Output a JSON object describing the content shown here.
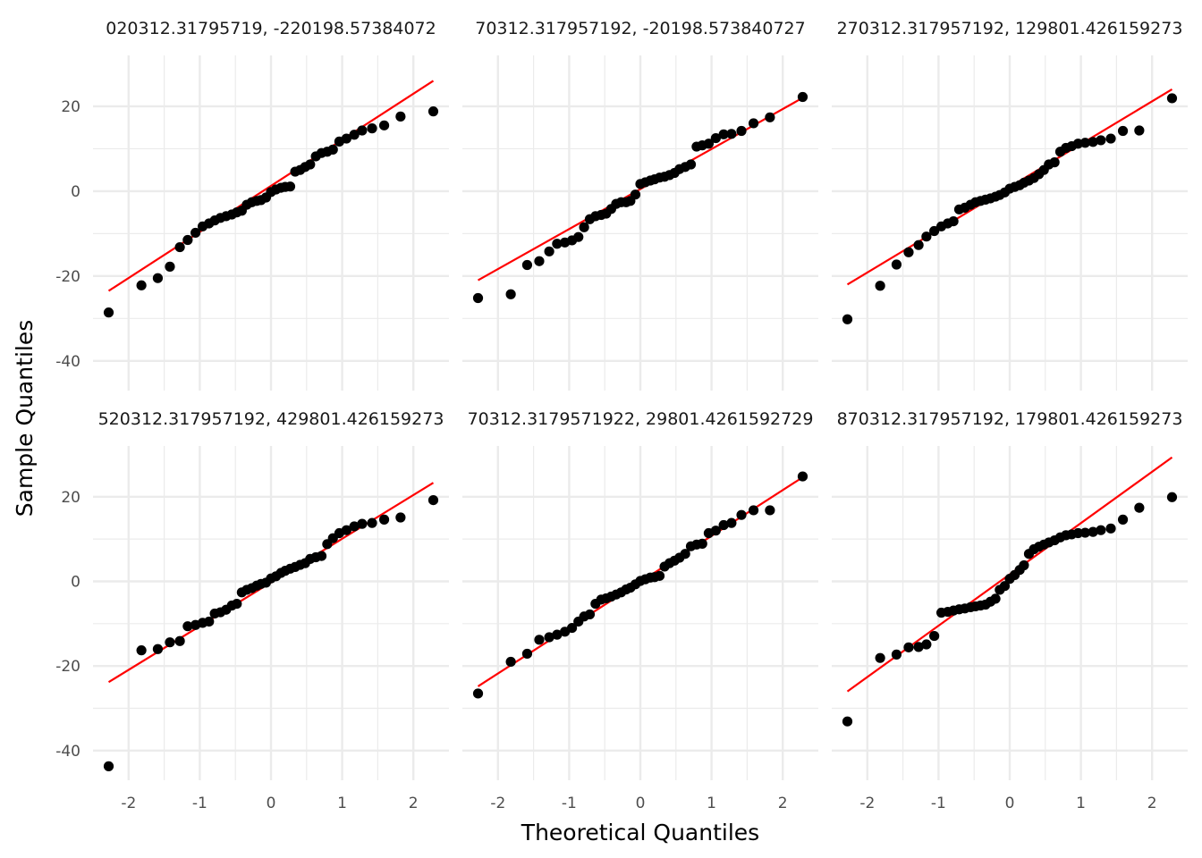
{
  "chart_data": {
    "type": "scatter",
    "xlabel": "Theoretical Quantiles",
    "ylabel": "Sample Quantiles",
    "xlim": [
      -2.5,
      2.5
    ],
    "ylim": [
      -47,
      32
    ],
    "x_ticks": [
      -2,
      -1,
      0,
      1,
      2
    ],
    "y_ticks": [
      -40,
      -20,
      0,
      20
    ],
    "grid": true,
    "colors": {
      "points": "#000000",
      "reference_line": "#ff0000",
      "grid": "#ebebeb"
    },
    "panels": [
      {
        "title": "020312.31795719, -220198.57384072",
        "line": {
          "x": [
            -2.28,
            2.28
          ],
          "y": [
            -23.5,
            26.0
          ]
        },
        "points": [
          [
            -2.28,
            -28.6
          ],
          [
            -1.82,
            -22.2
          ],
          [
            -1.59,
            -20.5
          ],
          [
            -1.42,
            -17.8
          ],
          [
            -1.28,
            -13.2
          ],
          [
            -1.17,
            -11.5
          ],
          [
            -1.06,
            -9.8
          ],
          [
            -0.96,
            -8.3
          ],
          [
            -0.87,
            -7.6
          ],
          [
            -0.79,
            -6.9
          ],
          [
            -0.71,
            -6.3
          ],
          [
            -0.63,
            -5.9
          ],
          [
            -0.55,
            -5.5
          ],
          [
            -0.48,
            -5.0
          ],
          [
            -0.41,
            -4.6
          ],
          [
            -0.34,
            -3.2
          ],
          [
            -0.27,
            -2.6
          ],
          [
            -0.2,
            -2.3
          ],
          [
            -0.14,
            -2.1
          ],
          [
            -0.07,
            -1.5
          ],
          [
            0.0,
            -0.2
          ],
          [
            0.07,
            0.4
          ],
          [
            0.14,
            0.8
          ],
          [
            0.2,
            1.0
          ],
          [
            0.27,
            1.1
          ],
          [
            0.34,
            4.6
          ],
          [
            0.41,
            5.0
          ],
          [
            0.48,
            5.7
          ],
          [
            0.55,
            6.3
          ],
          [
            0.63,
            8.2
          ],
          [
            0.71,
            9.0
          ],
          [
            0.79,
            9.3
          ],
          [
            0.87,
            9.8
          ],
          [
            0.96,
            11.7
          ],
          [
            1.06,
            12.4
          ],
          [
            1.17,
            13.3
          ],
          [
            1.28,
            14.3
          ],
          [
            1.42,
            14.8
          ],
          [
            1.59,
            15.5
          ],
          [
            1.82,
            17.6
          ],
          [
            2.28,
            18.8
          ]
        ]
      },
      {
        "title": "70312.317957192, -20198.573840727",
        "line": {
          "x": [
            -2.28,
            2.28
          ],
          "y": [
            -21.0,
            22.0
          ]
        },
        "points": [
          [
            -2.28,
            -25.2
          ],
          [
            -1.82,
            -24.3
          ],
          [
            -1.59,
            -17.4
          ],
          [
            -1.42,
            -16.5
          ],
          [
            -1.28,
            -14.2
          ],
          [
            -1.17,
            -12.4
          ],
          [
            -1.06,
            -12.1
          ],
          [
            -0.96,
            -11.6
          ],
          [
            -0.87,
            -10.8
          ],
          [
            -0.79,
            -8.5
          ],
          [
            -0.71,
            -6.6
          ],
          [
            -0.63,
            -5.9
          ],
          [
            -0.55,
            -5.6
          ],
          [
            -0.48,
            -5.3
          ],
          [
            -0.41,
            -4.2
          ],
          [
            -0.34,
            -3.0
          ],
          [
            -0.27,
            -2.6
          ],
          [
            -0.2,
            -2.6
          ],
          [
            -0.14,
            -2.3
          ],
          [
            -0.07,
            -0.8
          ],
          [
            0.0,
            1.7
          ],
          [
            0.07,
            2.1
          ],
          [
            0.14,
            2.5
          ],
          [
            0.2,
            2.8
          ],
          [
            0.27,
            3.2
          ],
          [
            0.34,
            3.4
          ],
          [
            0.41,
            3.8
          ],
          [
            0.48,
            4.3
          ],
          [
            0.55,
            5.2
          ],
          [
            0.63,
            5.7
          ],
          [
            0.71,
            6.3
          ],
          [
            0.79,
            10.5
          ],
          [
            0.87,
            10.8
          ],
          [
            0.96,
            11.2
          ],
          [
            1.06,
            12.5
          ],
          [
            1.17,
            13.4
          ],
          [
            1.28,
            13.5
          ],
          [
            1.42,
            14.2
          ],
          [
            1.59,
            16.0
          ],
          [
            1.82,
            17.4
          ],
          [
            2.28,
            22.2
          ]
        ]
      },
      {
        "title": "270312.317957192, 129801.426159273",
        "line": {
          "x": [
            -2.28,
            2.28
          ],
          "y": [
            -22.0,
            24.0
          ]
        },
        "points": [
          [
            -2.28,
            -30.2
          ],
          [
            -1.82,
            -22.3
          ],
          [
            -1.59,
            -17.3
          ],
          [
            -1.42,
            -14.4
          ],
          [
            -1.28,
            -12.7
          ],
          [
            -1.17,
            -10.7
          ],
          [
            -1.06,
            -9.4
          ],
          [
            -0.96,
            -8.3
          ],
          [
            -0.87,
            -7.6
          ],
          [
            -0.79,
            -7.1
          ],
          [
            -0.71,
            -4.3
          ],
          [
            -0.63,
            -3.9
          ],
          [
            -0.55,
            -3.2
          ],
          [
            -0.48,
            -2.6
          ],
          [
            -0.41,
            -2.3
          ],
          [
            -0.34,
            -2.0
          ],
          [
            -0.27,
            -1.7
          ],
          [
            -0.2,
            -1.3
          ],
          [
            -0.14,
            -0.9
          ],
          [
            -0.07,
            -0.3
          ],
          [
            0.0,
            0.6
          ],
          [
            0.07,
            1.0
          ],
          [
            0.14,
            1.4
          ],
          [
            0.2,
            2.0
          ],
          [
            0.27,
            2.5
          ],
          [
            0.34,
            3.1
          ],
          [
            0.41,
            4.0
          ],
          [
            0.48,
            5.0
          ],
          [
            0.55,
            6.3
          ],
          [
            0.63,
            6.8
          ],
          [
            0.71,
            9.3
          ],
          [
            0.79,
            10.2
          ],
          [
            0.87,
            10.6
          ],
          [
            0.96,
            11.2
          ],
          [
            1.06,
            11.4
          ],
          [
            1.17,
            11.6
          ],
          [
            1.28,
            12.0
          ],
          [
            1.42,
            12.4
          ],
          [
            1.59,
            14.2
          ],
          [
            1.82,
            14.3
          ],
          [
            2.28,
            21.9
          ]
        ]
      },
      {
        "title": "520312.317957192, 429801.426159273",
        "line": {
          "x": [
            -2.28,
            2.28
          ],
          "y": [
            -23.8,
            23.3
          ]
        },
        "points": [
          [
            -2.28,
            -43.7
          ],
          [
            -1.82,
            -16.3
          ],
          [
            -1.59,
            -16.0
          ],
          [
            -1.42,
            -14.4
          ],
          [
            -1.28,
            -14.1
          ],
          [
            -1.17,
            -10.6
          ],
          [
            -1.06,
            -10.3
          ],
          [
            -0.96,
            -9.8
          ],
          [
            -0.87,
            -9.5
          ],
          [
            -0.79,
            -7.6
          ],
          [
            -0.71,
            -7.3
          ],
          [
            -0.63,
            -6.7
          ],
          [
            -0.55,
            -5.7
          ],
          [
            -0.48,
            -5.3
          ],
          [
            -0.41,
            -2.6
          ],
          [
            -0.34,
            -2.0
          ],
          [
            -0.27,
            -1.6
          ],
          [
            -0.2,
            -1.0
          ],
          [
            -0.14,
            -0.6
          ],
          [
            -0.07,
            -0.3
          ],
          [
            0.0,
            0.7
          ],
          [
            0.07,
            1.2
          ],
          [
            0.14,
            2.0
          ],
          [
            0.2,
            2.5
          ],
          [
            0.27,
            3.0
          ],
          [
            0.34,
            3.4
          ],
          [
            0.41,
            3.9
          ],
          [
            0.48,
            4.3
          ],
          [
            0.55,
            5.3
          ],
          [
            0.63,
            5.7
          ],
          [
            0.71,
            6.0
          ],
          [
            0.79,
            8.8
          ],
          [
            0.87,
            10.2
          ],
          [
            0.96,
            11.4
          ],
          [
            1.06,
            12.1
          ],
          [
            1.17,
            13.0
          ],
          [
            1.28,
            13.6
          ],
          [
            1.42,
            13.8
          ],
          [
            1.59,
            14.6
          ],
          [
            1.82,
            15.1
          ],
          [
            2.28,
            19.2
          ]
        ]
      },
      {
        "title": "70312.3179571922, 29801.4261592729",
        "line": {
          "x": [
            -2.28,
            2.28
          ],
          "y": [
            -24.8,
            24.6
          ]
        },
        "points": [
          [
            -2.28,
            -26.5
          ],
          [
            -1.82,
            -19.0
          ],
          [
            -1.59,
            -17.1
          ],
          [
            -1.42,
            -13.8
          ],
          [
            -1.28,
            -13.2
          ],
          [
            -1.17,
            -12.6
          ],
          [
            -1.06,
            -11.9
          ],
          [
            -0.96,
            -11.0
          ],
          [
            -0.87,
            -9.5
          ],
          [
            -0.79,
            -8.3
          ],
          [
            -0.71,
            -7.8
          ],
          [
            -0.63,
            -5.3
          ],
          [
            -0.55,
            -4.3
          ],
          [
            -0.48,
            -4.0
          ],
          [
            -0.41,
            -3.6
          ],
          [
            -0.34,
            -3.1
          ],
          [
            -0.27,
            -2.6
          ],
          [
            -0.2,
            -1.9
          ],
          [
            -0.14,
            -1.5
          ],
          [
            -0.07,
            -0.7
          ],
          [
            0.0,
            0.1
          ],
          [
            0.07,
            0.5
          ],
          [
            0.14,
            0.9
          ],
          [
            0.2,
            1.0
          ],
          [
            0.27,
            1.3
          ],
          [
            0.34,
            3.5
          ],
          [
            0.41,
            4.3
          ],
          [
            0.48,
            4.9
          ],
          [
            0.55,
            5.6
          ],
          [
            0.63,
            6.5
          ],
          [
            0.71,
            8.3
          ],
          [
            0.79,
            8.7
          ],
          [
            0.87,
            8.9
          ],
          [
            0.96,
            11.4
          ],
          [
            1.06,
            12.0
          ],
          [
            1.17,
            13.3
          ],
          [
            1.28,
            13.8
          ],
          [
            1.42,
            15.7
          ],
          [
            1.59,
            16.8
          ],
          [
            1.82,
            16.8
          ],
          [
            2.28,
            24.8
          ]
        ]
      },
      {
        "title": "870312.317957192, 179801.426159273",
        "line": {
          "x": [
            -2.28,
            2.28
          ],
          "y": [
            -26.0,
            29.3
          ]
        },
        "points": [
          [
            -2.28,
            -33.1
          ],
          [
            -1.82,
            -18.1
          ],
          [
            -1.59,
            -17.3
          ],
          [
            -1.42,
            -15.6
          ],
          [
            -1.28,
            -15.5
          ],
          [
            -1.17,
            -14.9
          ],
          [
            -1.06,
            -12.9
          ],
          [
            -0.96,
            -7.4
          ],
          [
            -0.87,
            -7.2
          ],
          [
            -0.79,
            -6.9
          ],
          [
            -0.71,
            -6.6
          ],
          [
            -0.63,
            -6.4
          ],
          [
            -0.55,
            -6.1
          ],
          [
            -0.48,
            -5.9
          ],
          [
            -0.41,
            -5.7
          ],
          [
            -0.34,
            -5.5
          ],
          [
            -0.27,
            -4.8
          ],
          [
            -0.2,
            -4.1
          ],
          [
            -0.14,
            -2.0
          ],
          [
            -0.07,
            -1.1
          ],
          [
            0.0,
            0.6
          ],
          [
            0.07,
            1.5
          ],
          [
            0.14,
            2.7
          ],
          [
            0.2,
            3.8
          ],
          [
            0.27,
            6.5
          ],
          [
            0.34,
            7.6
          ],
          [
            0.41,
            8.2
          ],
          [
            0.48,
            8.7
          ],
          [
            0.55,
            9.2
          ],
          [
            0.63,
            9.7
          ],
          [
            0.71,
            10.4
          ],
          [
            0.79,
            10.9
          ],
          [
            0.87,
            11.1
          ],
          [
            0.96,
            11.4
          ],
          [
            1.06,
            11.5
          ],
          [
            1.17,
            11.7
          ],
          [
            1.28,
            12.1
          ],
          [
            1.42,
            12.5
          ],
          [
            1.59,
            14.6
          ],
          [
            1.82,
            17.4
          ],
          [
            2.28,
            19.9
          ]
        ]
      }
    ]
  }
}
